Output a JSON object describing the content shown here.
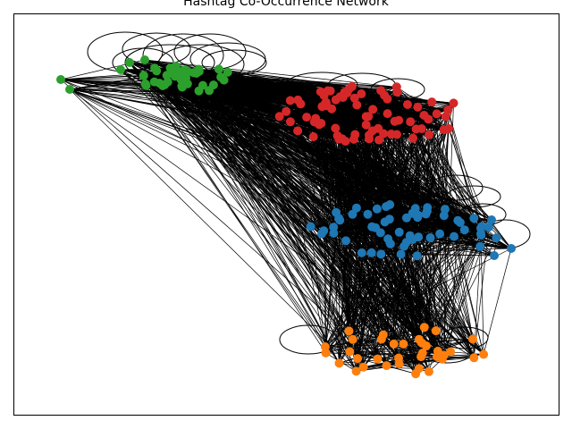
{
  "chart_data": {
    "type": "network",
    "title": "Hashtag Co-Occurrence Network",
    "node_color_groups": [
      {
        "color": "#2ca02c",
        "node_count": 45
      },
      {
        "color": "#d62728",
        "node_count": 75
      },
      {
        "color": "#1f77b4",
        "node_count": 60
      },
      {
        "color": "#ff7f0e",
        "node_count": 35
      }
    ],
    "edge_color": "#000000",
    "node_labels_shown": false,
    "self_loops_shown": true,
    "axes_frame": true,
    "ticks_shown": false,
    "legend": "none"
  }
}
